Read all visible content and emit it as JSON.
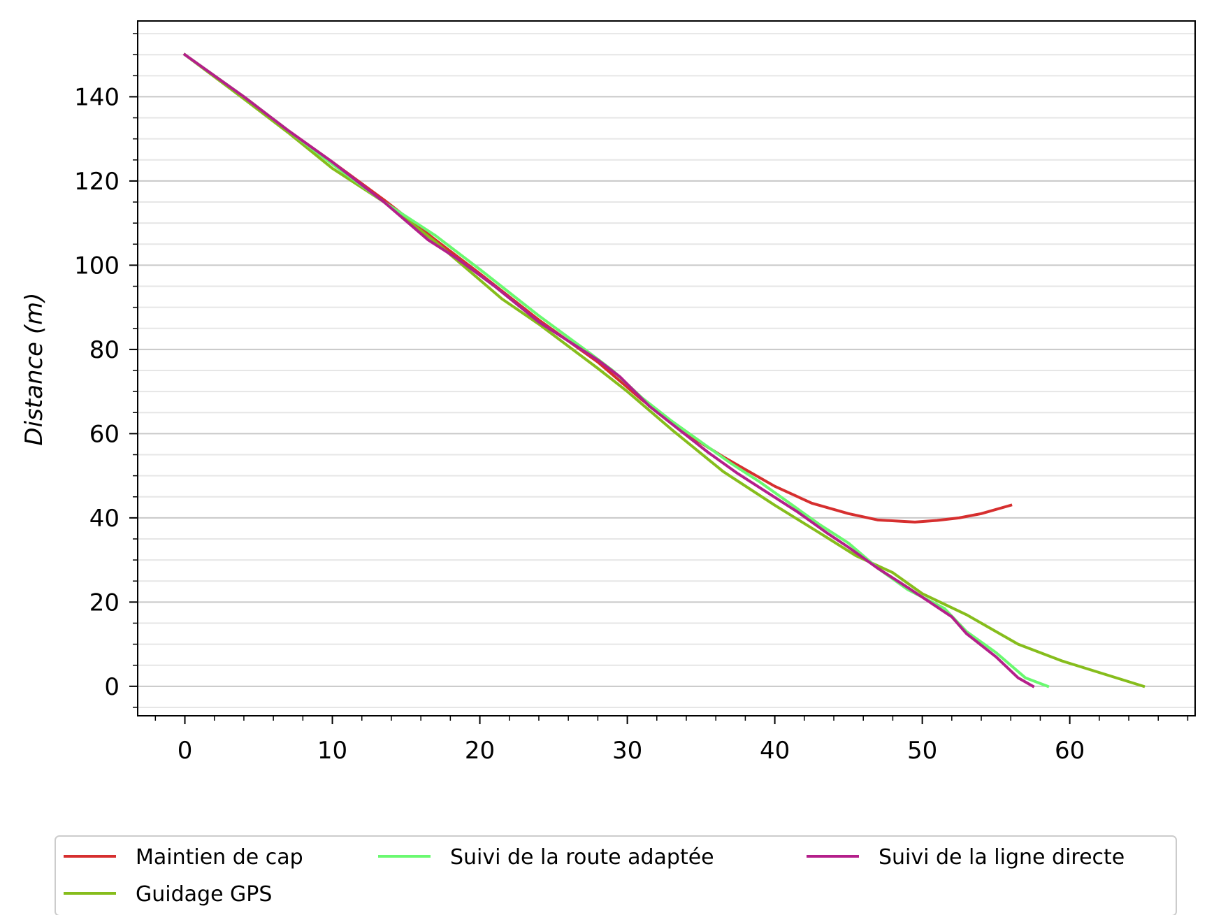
{
  "chart_data": {
    "type": "line",
    "title": "",
    "xlabel": "",
    "ylabel": "Distance (m)",
    "xlim": [
      -3.2,
      68.5
    ],
    "ylim": [
      -7,
      158
    ],
    "xticks": [
      0,
      10,
      20,
      30,
      40,
      50,
      60
    ],
    "yticks": [
      0,
      20,
      40,
      60,
      80,
      100,
      120,
      140
    ],
    "x_minor_step": 2,
    "y_minor_step": 5,
    "grid": {
      "major_y": true,
      "minor_y": true,
      "x": false
    },
    "legend_position": "bottom-center",
    "legend_columns": 3,
    "series": [
      {
        "name": "Maintien de cap",
        "color": "#d62f2f",
        "x": [
          0,
          4,
          7,
          10,
          13.5,
          17,
          20,
          24,
          28,
          31,
          34,
          36.5,
          38,
          40,
          42.5,
          45,
          47,
          49.5,
          51,
          52.5,
          54,
          56
        ],
        "y": [
          150,
          140,
          132,
          124.5,
          115.5,
          106,
          98,
          87,
          77,
          68,
          60,
          54.5,
          51.5,
          47.5,
          43.5,
          41,
          39.5,
          39,
          39.4,
          40,
          41,
          43
        ]
      },
      {
        "name": "Guidage GPS",
        "color": "#86bd1c",
        "x": [
          0,
          4,
          7,
          10,
          13.5,
          17,
          20,
          21.5,
          24,
          28,
          30,
          33,
          36.5,
          40,
          43,
          45.5,
          48,
          50,
          53,
          56.5,
          59.5,
          65
        ],
        "y": [
          150,
          139.5,
          131.5,
          123,
          115,
          105.5,
          96.5,
          92,
          86,
          75.5,
          70,
          61,
          51,
          43,
          36.5,
          31,
          27,
          22,
          17,
          10,
          6,
          0
        ]
      },
      {
        "name": "Suivi de la route adaptée",
        "color": "#6af970",
        "x": [
          0,
          4,
          7,
          10,
          13.5,
          17,
          20,
          24,
          27.5,
          29,
          31,
          33,
          35,
          37,
          39,
          41,
          43,
          45,
          47,
          49,
          51.5,
          53,
          55,
          57,
          58.5
        ],
        "y": [
          150,
          140,
          132,
          124,
          115,
          107,
          99,
          88,
          79,
          75,
          68.5,
          63,
          58,
          53,
          48.5,
          43.5,
          38.5,
          34,
          28,
          23,
          18.5,
          13,
          8,
          2,
          0
        ]
      },
      {
        "name": "Suivi de la ligne directe",
        "color": "#b41f8a",
        "x": [
          0,
          4,
          7,
          10,
          13.5,
          16.5,
          18.5,
          21,
          24,
          28,
          29.5,
          31.5,
          33.5,
          35.5,
          37.5,
          39.5,
          41.5,
          43.5,
          45,
          47,
          49,
          50.5,
          52,
          53,
          55,
          56.5,
          57.5
        ],
        "y": [
          150,
          140,
          132,
          124.5,
          115,
          106,
          101.5,
          95,
          86.5,
          77.5,
          73.5,
          66.5,
          61,
          55.5,
          50.5,
          46,
          41.5,
          36.5,
          33,
          28,
          23.5,
          20,
          16.5,
          12.5,
          7,
          2,
          0
        ]
      }
    ]
  }
}
